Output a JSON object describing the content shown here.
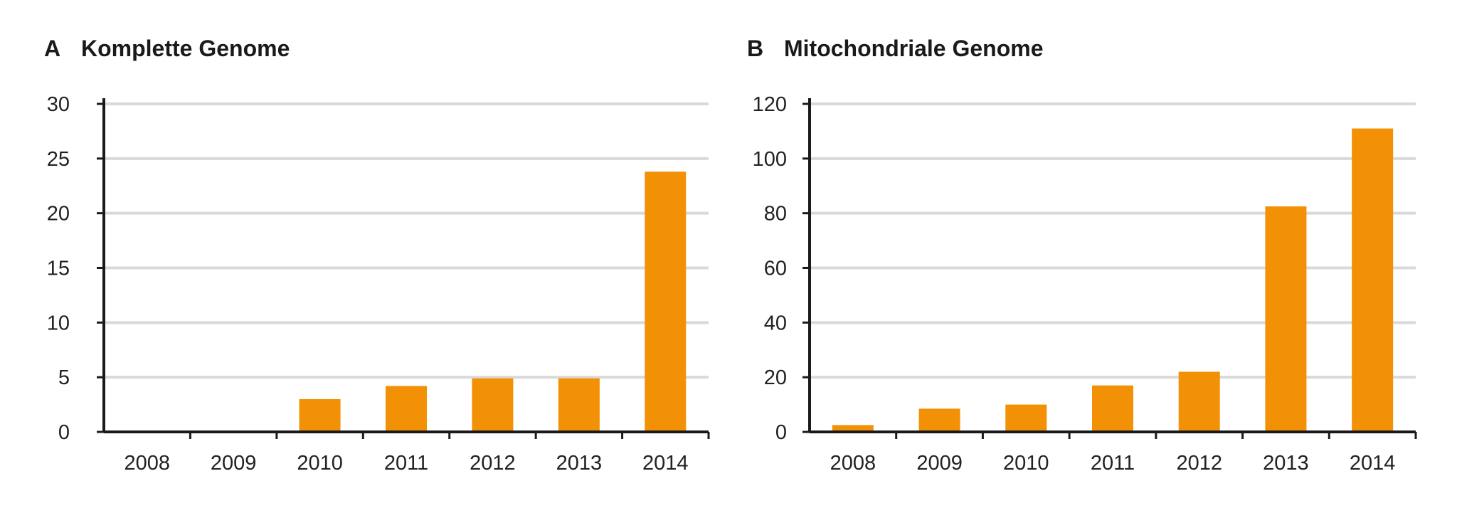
{
  "panels": [
    {
      "letter": "A",
      "title": "Komplette Genome"
    },
    {
      "letter": "B",
      "title": "Mitochondriale Genome"
    }
  ],
  "colors": {
    "bar": "#f29106",
    "grid": "#d9d9d9",
    "axis": "#1a1a1a"
  },
  "chart_data": [
    {
      "type": "bar",
      "title": "Komplette Genome",
      "categories": [
        "2008",
        "2009",
        "2010",
        "2011",
        "2012",
        "2013",
        "2014"
      ],
      "values": [
        0,
        0,
        3,
        4.2,
        4.9,
        4.9,
        23.8
      ],
      "ylim": [
        0,
        30
      ],
      "yticks": [
        0,
        5,
        10,
        15,
        20,
        25,
        30
      ],
      "xlabel": "",
      "ylabel": "",
      "grid": true,
      "legend": "none"
    },
    {
      "type": "bar",
      "title": "Mitochondriale Genome",
      "categories": [
        "2008",
        "2009",
        "2010",
        "2011",
        "2012",
        "2013",
        "2014"
      ],
      "values": [
        2.5,
        8.5,
        10,
        17,
        22,
        82.5,
        111
      ],
      "ylim": [
        0,
        120
      ],
      "yticks": [
        0,
        20,
        40,
        60,
        80,
        100,
        120
      ],
      "xlabel": "",
      "ylabel": "",
      "grid": true,
      "legend": "none"
    }
  ]
}
